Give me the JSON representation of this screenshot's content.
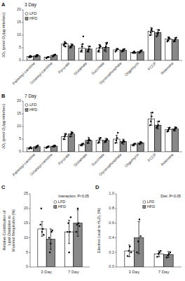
{
  "chart_data": [
    {
      "type": "bar",
      "panel_label": "A",
      "title": "3 Day",
      "categories": [
        "Palmitoyl-carnitine",
        "Octanoyl-carnitine",
        "Pyruvate",
        "Glutamate",
        "Succinate",
        "Glycerophosphate",
        "Oligomycin",
        "FCCP",
        "Rotenone"
      ],
      "series": [
        {
          "name": "LFD",
          "color": "white",
          "marker": "circle",
          "values": [
            1.5,
            1.2,
            6.5,
            4.8,
            4.8,
            4.2,
            3.2,
            11.5,
            8.5
          ],
          "errors": [
            0.3,
            0.2,
            1.0,
            1.5,
            1.5,
            0.5,
            0.4,
            1.5,
            0.8
          ],
          "points": [
            [
              1.2,
              1.5,
              1.8,
              1.3,
              1.6
            ],
            [
              0.9,
              1.1,
              1.3,
              1.4
            ],
            [
              6.0,
              6.5,
              7.0,
              5.5,
              6.8
            ],
            [
              3.5,
              4.0,
              5.5,
              6.5,
              9.5
            ],
            [
              3.5,
              4.0,
              5.0,
              6.0,
              5.5
            ],
            [
              3.5,
              4.0,
              4.5,
              4.5
            ],
            [
              3.0,
              3.2,
              3.5,
              3.0
            ],
            [
              10.0,
              11.0,
              12.0,
              12.5,
              11.5
            ],
            [
              7.5,
              8.0,
              9.0,
              9.0,
              8.5
            ]
          ]
        },
        {
          "name": "HFD",
          "color": "#888888",
          "marker": "square",
          "values": [
            1.8,
            2.0,
            5.8,
            4.5,
            5.2,
            4.0,
            3.5,
            11.0,
            8.2
          ],
          "errors": [
            0.4,
            0.3,
            0.8,
            1.2,
            1.8,
            0.5,
            0.4,
            1.2,
            0.8
          ],
          "points": [
            [
              1.5,
              1.8,
              2.0,
              2.2,
              1.9
            ],
            [
              1.5,
              2.0,
              2.2,
              2.3
            ],
            [
              5.0,
              5.5,
              6.0,
              6.2
            ],
            [
              3.5,
              4.0,
              4.5,
              5.5
            ],
            [
              4.0,
              5.0,
              5.5,
              6.5,
              7.0
            ],
            [
              3.5,
              4.0,
              4.2,
              4.5
            ],
            [
              3.0,
              3.5,
              3.8,
              4.0
            ],
            [
              9.5,
              10.5,
              11.0,
              12.0
            ],
            [
              7.5,
              8.0,
              8.5,
              9.0
            ]
          ]
        }
      ],
      "ylabel": "JO₂ (pmol O₂/μg mito/sec)",
      "ylim": [
        0,
        20
      ],
      "yticks": [
        0,
        5,
        10,
        15,
        20
      ],
      "legend": "upper left",
      "grid": false
    },
    {
      "type": "bar",
      "panel_label": "B",
      "title": "7 Day",
      "categories": [
        "Palmitoyl-carnitine",
        "Octanoyl-carnitine",
        "Pyruvate",
        "Glutamate",
        "Succinate",
        "Glycerophosphate",
        "Oligomycin",
        "FCCP",
        "Rotenone"
      ],
      "series": [
        {
          "name": "LFD",
          "color": "white",
          "marker": "circle",
          "values": [
            1.5,
            1.8,
            6.0,
            2.8,
            4.5,
            5.0,
            2.8,
            13.0,
            8.8
          ],
          "errors": [
            0.3,
            0.3,
            1.2,
            0.5,
            1.0,
            1.5,
            0.5,
            2.5,
            0.8
          ],
          "points": [
            [
              1.2,
              1.5,
              1.8,
              1.3
            ],
            [
              1.5,
              1.8,
              2.0,
              2.2
            ],
            [
              5.0,
              6.0,
              6.5,
              7.0
            ],
            [
              2.5,
              2.8,
              3.0,
              3.2
            ],
            [
              3.5,
              4.0,
              5.0,
              5.5
            ],
            [
              3.5,
              4.5,
              5.5,
              7.5
            ],
            [
              2.5,
              2.8,
              3.0,
              3.2
            ],
            [
              10.5,
              12.0,
              14.0,
              15.5
            ],
            [
              8.0,
              8.5,
              9.0,
              9.5
            ]
          ]
        },
        {
          "name": "HFD",
          "color": "#888888",
          "marker": "square",
          "values": [
            2.0,
            2.2,
            7.0,
            4.5,
            4.5,
            4.0,
            3.5,
            10.5,
            9.0
          ],
          "errors": [
            0.4,
            0.3,
            1.0,
            1.2,
            0.8,
            1.0,
            0.5,
            1.5,
            0.8
          ],
          "points": [
            [
              1.5,
              2.0,
              2.2,
              2.5
            ],
            [
              2.0,
              2.2,
              2.5,
              2.3
            ],
            [
              6.0,
              7.0,
              7.5,
              7.5
            ],
            [
              3.5,
              4.5,
              5.0,
              4.5
            ],
            [
              3.8,
              4.2,
              4.5,
              5.0
            ],
            [
              3.5,
              4.0,
              4.5,
              4.0
            ],
            [
              3.0,
              3.5,
              3.8,
              3.5
            ],
            [
              9.5,
              10.0,
              10.5,
              12.0
            ],
            [
              8.5,
              9.0,
              9.5,
              9.5
            ]
          ]
        }
      ],
      "ylabel": "JO₂ (pmol O₂/μg mito/sec)",
      "ylim": [
        0,
        20
      ],
      "yticks": [
        0,
        5,
        10,
        15,
        20
      ],
      "legend": "upper left",
      "grid": false
    },
    {
      "type": "bar",
      "panel_label": "C",
      "categories": [
        "3 Day",
        "7 Day"
      ],
      "series": [
        {
          "name": "LFD",
          "color": "white",
          "marker": "circle",
          "values": [
            13.0,
            12.0
          ],
          "errors": [
            2.5,
            4.0
          ],
          "points": [
            [
              14.5,
              20.0,
              12.0,
              13.0,
              11.0
            ],
            [
              12.0,
              15.0,
              5.0,
              12.0,
              17.0
            ]
          ]
        },
        {
          "name": "HFD",
          "color": "#888888",
          "marker": "square",
          "values": [
            9.5,
            15.0
          ],
          "errors": [
            3.5,
            4.5
          ],
          "points": [
            [
              10.0,
              5.0,
              8.0,
              12.0,
              12.5
            ],
            [
              12.0,
              14.5,
              20.0,
              15.0,
              14.0
            ]
          ]
        }
      ],
      "ylabel": "Relative Contribution of\nLipid Oxidation to\nMaximal Respiration (%)",
      "annotation": "Interaction: P<0.05",
      "ylim": [
        0,
        25
      ],
      "yticks": [
        0,
        5,
        10,
        15,
        20,
        25
      ],
      "legend": "upper center",
      "grid": false
    },
    {
      "type": "bar",
      "panel_label": "D",
      "categories": [
        "3 Day",
        "7 Day"
      ],
      "series": [
        {
          "name": "LFD",
          "color": "white",
          "marker": "circle",
          "values": [
            0.22,
            0.18
          ],
          "errors": [
            0.08,
            0.04
          ],
          "points": [
            [
              0.15,
              0.22,
              0.28,
              0.2
            ],
            [
              0.14,
              0.18,
              0.2,
              0.22
            ]
          ]
        },
        {
          "name": "HFD",
          "color": "#888888",
          "marker": "square",
          "values": [
            0.4,
            0.17
          ],
          "errors": [
            0.22,
            0.04
          ],
          "points": [
            [
              0.2,
              0.35,
              0.65,
              0.42
            ],
            [
              0.13,
              0.16,
              0.18,
              0.2
            ]
          ]
        }
      ],
      "ylabel": "Electron Leak to H₂O₂ (%)",
      "annotation": "Diet: P<0.05",
      "ylim": [
        0.0,
        1.0
      ],
      "yticks": [
        {
          "value": 0.0,
          "label": "0.0"
        },
        0.2,
        0.4,
        0.6,
        0.8,
        {
          "value": 1.0,
          "label": "1.0"
        }
      ],
      "legend": "upper center",
      "grid": false
    }
  ]
}
